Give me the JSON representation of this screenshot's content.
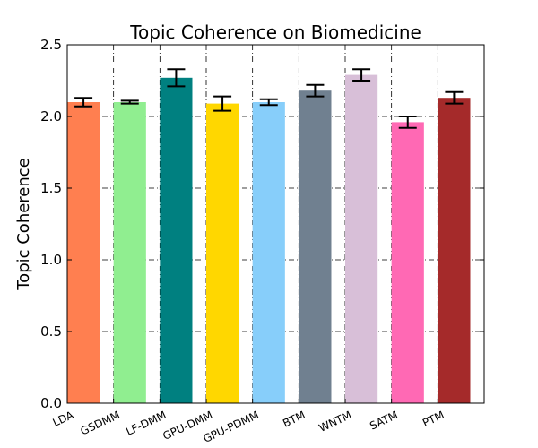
{
  "chart_data": {
    "type": "bar",
    "title": "Topic Coherence on Biomedicine",
    "xlabel": "",
    "ylabel": "Topic Coherence",
    "ylim": [
      0,
      2.5
    ],
    "yticks": [
      "0.0",
      "0.5",
      "1.0",
      "1.5",
      "2.0",
      "2.5"
    ],
    "grid": true,
    "categories": [
      "LDA",
      "GSDMM",
      "LF-DMM",
      "GPU-DMM",
      "GPU-PDMM",
      "BTM",
      "WNTM",
      "SATM",
      "PTM"
    ],
    "values": [
      2.1,
      2.1,
      2.27,
      2.09,
      2.1,
      2.18,
      2.29,
      1.96,
      2.13
    ],
    "errors": [
      0.03,
      0.01,
      0.06,
      0.05,
      0.02,
      0.04,
      0.04,
      0.04,
      0.04
    ],
    "colors": [
      "#FF7F50",
      "#90EE90",
      "#008080",
      "#FFD700",
      "#87CEFA",
      "#708090",
      "#D8BFD8",
      "#FF69B4",
      "#A52A2A"
    ]
  }
}
